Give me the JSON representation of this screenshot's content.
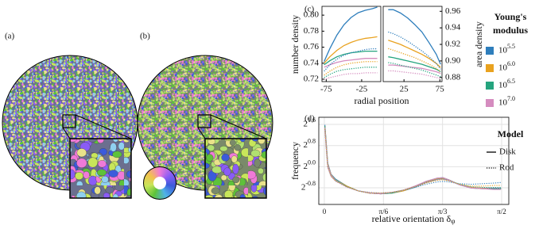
{
  "panel_labels": {
    "a": "(a)",
    "b": "(b)"
  },
  "legend": {
    "modulus_title": [
      "Young's",
      "modulus"
    ],
    "moduli": [
      {
        "label": "10^5.5",
        "color": "#2e7ebc"
      },
      {
        "label": "10^6.0",
        "color": "#e9a21f"
      },
      {
        "label": "10^6.5",
        "color": "#25a47e"
      },
      {
        "label": "10^7.0",
        "color": "#d58cbf"
      }
    ],
    "model_title": "Model",
    "models": [
      {
        "label": "Disk",
        "dash": "solid"
      },
      {
        "label": "Rod",
        "dash": "dotted"
      }
    ]
  },
  "chart_data": [
    {
      "type": "line",
      "label": "(c)",
      "xlabel": "radial position",
      "ylabel": "number density",
      "y2label": "area density",
      "ylim": [
        0.717,
        0.811
      ],
      "yticks": [
        0.72,
        0.74,
        0.76,
        0.78,
        {
          "value": 0.8,
          "label": "0.80"
        }
      ],
      "y2lim": [
        0.875,
        0.966
      ],
      "y2ticks": [
        0.88,
        {
          "value": 0.9,
          "label": "0.90"
        },
        0.92,
        0.94,
        0.96
      ],
      "panels": [
        {
          "xlim": [
            -81,
            2
          ],
          "xticks": [
            -75,
            -25
          ],
          "x": [
            -78,
            -70,
            -60,
            -50,
            -40,
            -30,
            -20,
            -10,
            -3
          ],
          "series": [
            {
              "color": "#2e7ebc",
              "dash": "solid",
              "values": [
                0.742,
                0.758,
                0.775,
                0.788,
                0.797,
                0.803,
                0.806,
                0.808,
                0.81
              ]
            },
            {
              "color": "#e9a21f",
              "dash": "solid",
              "values": [
                0.74,
                0.748,
                0.756,
                0.762,
                0.766,
                0.769,
                0.771,
                0.772,
                0.773
              ]
            },
            {
              "color": "#25a47e",
              "dash": "solid",
              "values": [
                0.738,
                0.743,
                0.748,
                0.751,
                0.753,
                0.754,
                0.755,
                0.755,
                0.755
              ]
            },
            {
              "color": "#d58cbf",
              "dash": "solid",
              "values": [
                0.735,
                0.738,
                0.741,
                0.743,
                0.744,
                0.745,
                0.746,
                0.746,
                0.746
              ]
            },
            {
              "color": "#2e7ebc",
              "dash": "dotted",
              "values": [
                0.73,
                0.738,
                0.745,
                0.75,
                0.753,
                0.755,
                0.757,
                0.758,
                0.758
              ]
            },
            {
              "color": "#e9a21f",
              "dash": "dotted",
              "values": [
                0.725,
                0.73,
                0.735,
                0.738,
                0.74,
                0.741,
                0.742,
                0.742,
                0.742
              ]
            },
            {
              "color": "#25a47e",
              "dash": "dotted",
              "values": [
                0.722,
                0.726,
                0.73,
                0.732,
                0.733,
                0.734,
                0.735,
                0.735,
                0.735
              ]
            },
            {
              "color": "#d58cbf",
              "dash": "dotted",
              "values": [
                0.72,
                0.722,
                0.724,
                0.726,
                0.727,
                0.727,
                0.728,
                0.728,
                0.728
              ]
            }
          ]
        },
        {
          "xlim": [
            -4,
            78
          ],
          "xticks": [
            25,
            75
          ],
          "x": [
            3,
            10,
            20,
            30,
            40,
            50,
            60,
            70,
            76
          ],
          "series": [
            {
              "axis": "y2",
              "color": "#2e7ebc",
              "dash": "solid",
              "values": [
                0.962,
                0.962,
                0.958,
                0.952,
                0.944,
                0.935,
                0.922,
                0.908,
                0.896
              ]
            },
            {
              "axis": "y2",
              "color": "#e9a21f",
              "dash": "solid",
              "values": [
                0.925,
                0.923,
                0.92,
                0.916,
                0.912,
                0.908,
                0.903,
                0.897,
                0.892
              ]
            },
            {
              "axis": "y2",
              "color": "#25a47e",
              "dash": "solid",
              "values": [
                0.905,
                0.904,
                0.902,
                0.9,
                0.898,
                0.896,
                0.893,
                0.89,
                0.887
              ]
            },
            {
              "axis": "y2",
              "color": "#d58cbf",
              "dash": "solid",
              "values": [
                0.895,
                0.895,
                0.894,
                0.893,
                0.892,
                0.891,
                0.889,
                0.887,
                0.885
              ]
            },
            {
              "axis": "y2",
              "color": "#2e7ebc",
              "dash": "dotted",
              "values": [
                0.935,
                0.933,
                0.929,
                0.924,
                0.918,
                0.912,
                0.905,
                0.897,
                0.89
              ]
            },
            {
              "axis": "y2",
              "color": "#e9a21f",
              "dash": "dotted",
              "values": [
                0.915,
                0.913,
                0.91,
                0.907,
                0.904,
                0.9,
                0.896,
                0.891,
                0.887
              ]
            },
            {
              "axis": "y2",
              "color": "#25a47e",
              "dash": "dotted",
              "values": [
                0.898,
                0.897,
                0.895,
                0.893,
                0.891,
                0.889,
                0.886,
                0.883,
                0.881
              ]
            },
            {
              "axis": "y2",
              "color": "#d58cbf",
              "dash": "dotted",
              "values": [
                0.888,
                0.888,
                0.887,
                0.886,
                0.885,
                0.884,
                0.882,
                0.88,
                0.879
              ]
            }
          ]
        }
      ]
    },
    {
      "type": "line",
      "label": "(d)",
      "xlabel": "relative orientation δ",
      "xlabel_sub": "φ",
      "ylabel": "frequency",
      "yscale": "log",
      "log_base": 2,
      "grid": true,
      "xlim": [
        -0.049,
        1.634
      ],
      "xticks": [
        0,
        {
          "value": 0.5236,
          "label": "π/6"
        },
        {
          "value": 1.0472,
          "label": "π/3"
        },
        {
          "value": 1.5708,
          "label": "π/2"
        }
      ],
      "ylim": [
        0.371,
        3.66
      ],
      "yticks": [
        {
          "value": 0.574,
          "label": "2^-0.8"
        },
        {
          "value": 1,
          "label": "2^0.0"
        },
        {
          "value": 1.741,
          "label": "2^0.8"
        },
        {
          "value": 3.031,
          "label": "2^1.6"
        }
      ],
      "x": [
        0.005,
        0.03,
        0.06,
        0.1,
        0.2,
        0.3,
        0.4,
        0.5,
        0.6,
        0.7,
        0.8,
        0.9,
        1.0,
        1.05,
        1.1,
        1.2,
        1.3,
        1.4,
        1.5,
        1.565
      ],
      "series": [
        {
          "color": "#2e7ebc",
          "dash": "solid",
          "values": [
            3.0,
            1.1,
            0.82,
            0.72,
            0.6,
            0.53,
            0.5,
            0.49,
            0.5,
            0.53,
            0.58,
            0.66,
            0.72,
            0.73,
            0.7,
            0.62,
            0.58,
            0.57,
            0.57,
            0.57
          ]
        },
        {
          "color": "#e9a21f",
          "dash": "solid",
          "values": [
            2.9,
            1.08,
            0.81,
            0.71,
            0.6,
            0.53,
            0.5,
            0.49,
            0.5,
            0.53,
            0.59,
            0.67,
            0.73,
            0.74,
            0.71,
            0.62,
            0.58,
            0.57,
            0.56,
            0.56
          ]
        },
        {
          "color": "#25a47e",
          "dash": "solid",
          "values": [
            2.9,
            1.06,
            0.8,
            0.71,
            0.59,
            0.53,
            0.5,
            0.49,
            0.5,
            0.54,
            0.59,
            0.68,
            0.74,
            0.75,
            0.71,
            0.62,
            0.57,
            0.56,
            0.56,
            0.56
          ]
        },
        {
          "color": "#d58cbf",
          "dash": "solid",
          "values": [
            2.8,
            1.05,
            0.8,
            0.7,
            0.59,
            0.53,
            0.5,
            0.49,
            0.51,
            0.54,
            0.6,
            0.68,
            0.74,
            0.75,
            0.71,
            0.62,
            0.57,
            0.56,
            0.55,
            0.55
          ]
        },
        {
          "color": "#2e7ebc",
          "dash": "dotted",
          "values": [
            2.7,
            1.0,
            0.78,
            0.69,
            0.59,
            0.53,
            0.5,
            0.5,
            0.51,
            0.54,
            0.58,
            0.63,
            0.67,
            0.68,
            0.67,
            0.64,
            0.63,
            0.64,
            0.65,
            0.66
          ]
        },
        {
          "color": "#e9a21f",
          "dash": "dotted",
          "values": [
            2.7,
            1.0,
            0.78,
            0.69,
            0.59,
            0.53,
            0.5,
            0.5,
            0.51,
            0.54,
            0.59,
            0.65,
            0.7,
            0.71,
            0.69,
            0.63,
            0.6,
            0.6,
            0.61,
            0.61
          ]
        },
        {
          "color": "#25a47e",
          "dash": "dotted",
          "values": [
            2.6,
            0.98,
            0.77,
            0.69,
            0.59,
            0.53,
            0.51,
            0.5,
            0.51,
            0.54,
            0.59,
            0.66,
            0.71,
            0.72,
            0.7,
            0.63,
            0.59,
            0.58,
            0.58,
            0.58
          ]
        },
        {
          "color": "#d58cbf",
          "dash": "dotted",
          "values": [
            2.6,
            0.97,
            0.77,
            0.68,
            0.58,
            0.53,
            0.51,
            0.5,
            0.51,
            0.54,
            0.59,
            0.66,
            0.71,
            0.72,
            0.7,
            0.62,
            0.58,
            0.57,
            0.57,
            0.57
          ]
        }
      ]
    }
  ]
}
